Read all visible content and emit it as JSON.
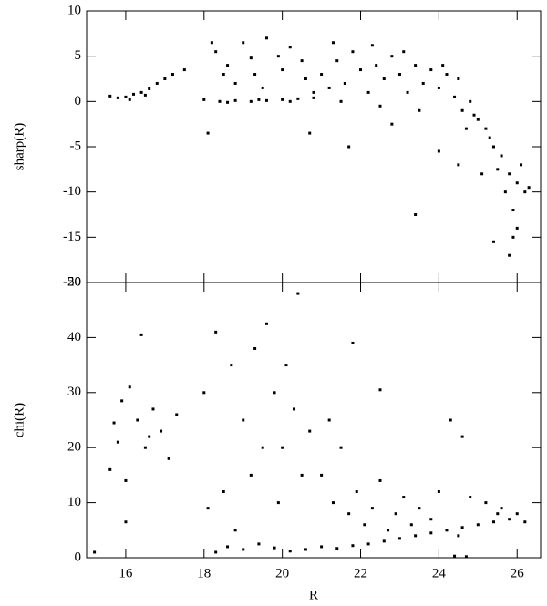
{
  "chart_data": [
    {
      "type": "scatter",
      "y_label": "sharp(R)",
      "color": "#000000",
      "xlim": [
        15,
        26.6
      ],
      "ylim": [
        -20,
        10
      ],
      "yticks": [
        -20,
        -15,
        -10,
        -5,
        0,
        5,
        10
      ],
      "x": [
        15.6,
        15.8,
        16.0,
        16.2,
        16.4,
        16.6,
        16.8,
        17.0,
        17.2,
        17.5,
        16.5,
        16.1,
        18.0,
        18.4,
        18.8,
        19.2,
        19.6,
        20.0,
        20.4,
        20.8,
        18.6,
        19.4,
        20.2,
        18.3,
        18.6,
        19.0,
        19.3,
        19.6,
        19.9,
        20.2,
        20.5,
        18.8,
        19.5,
        18.2,
        20.0,
        19.2,
        18.5,
        20.6,
        21.0,
        21.2,
        21.4,
        21.6,
        21.8,
        22.0,
        22.2,
        22.4,
        22.6,
        22.8,
        23.0,
        23.2,
        23.4,
        23.6,
        23.8,
        24.0,
        24.2,
        24.4,
        21.5,
        22.5,
        23.5,
        20.8,
        21.3,
        22.3,
        23.1,
        24.1,
        24.5,
        24.6,
        24.8,
        25.0,
        25.2,
        25.4,
        25.6,
        25.8,
        26.0,
        26.2,
        25.5,
        25.9,
        25.3,
        24.9,
        26.1,
        25.7,
        25.1,
        25.4,
        25.8,
        26.3,
        26.0,
        24.7,
        23.4,
        20.7,
        18.1,
        21.7,
        22.8,
        24.0,
        24.5,
        25.9
      ],
      "values": [
        0.6,
        0.4,
        0.5,
        0.8,
        1.0,
        1.4,
        2.0,
        2.5,
        3.0,
        3.5,
        0.7,
        0.2,
        0.2,
        0,
        0.1,
        0,
        0.1,
        0.2,
        0.3,
        0.4,
        -0.1,
        0.2,
        0,
        5.5,
        4,
        6.5,
        3,
        7,
        5,
        6,
        4.5,
        2,
        1.5,
        6.5,
        3.5,
        4.8,
        3,
        2.5,
        3,
        1.5,
        4.5,
        2,
        5.5,
        3.5,
        1,
        4,
        2.5,
        5,
        3,
        1,
        4,
        2,
        3.5,
        1.5,
        3,
        0.5,
        0,
        -0.5,
        -1,
        1,
        6.5,
        6.2,
        5.5,
        4,
        2.5,
        -1,
        0,
        -2,
        -3,
        -5,
        -6,
        -8,
        -9,
        -10,
        -7.5,
        -12,
        -4,
        -1.5,
        -7,
        -10,
        -8,
        -15.5,
        -17,
        -9.5,
        -14,
        -3,
        -12.5,
        -3.5,
        -3.5,
        -5,
        -2.5,
        -5.5,
        -7,
        -15
      ]
    },
    {
      "type": "scatter",
      "x_label": "R",
      "y_label": "chi(R)",
      "color": "#000000",
      "xlim": [
        15,
        26.6
      ],
      "ylim": [
        0,
        50
      ],
      "xticks": [
        16,
        18,
        20,
        22,
        24,
        26
      ],
      "yticks": [
        0,
        10,
        20,
        30,
        40,
        50
      ],
      "x": [
        15.6,
        15.8,
        16.0,
        16.3,
        16.5,
        16.7,
        16.9,
        17.1,
        16.4,
        15.9,
        16.1,
        15.2,
        16.0,
        16.6,
        17.3,
        15.7,
        18.3,
        18.6,
        19.0,
        19.4,
        19.8,
        20.2,
        20.6,
        21.0,
        21.4,
        21.8,
        22.2,
        22.6,
        23.0,
        23.4,
        23.8,
        24.2,
        24.6,
        25.0,
        25.4,
        25.8,
        26.2,
        26.0,
        25.6,
        24.4,
        24.7,
        18.0,
        18.3,
        18.7,
        19.0,
        19.3,
        19.6,
        19.8,
        20.0,
        20.3,
        20.5,
        20.7,
        18.5,
        19.2,
        18.1,
        19.5,
        20.1,
        19.9,
        18.8,
        20.4,
        21.0,
        21.3,
        21.5,
        21.7,
        21.9,
        22.1,
        22.3,
        22.5,
        22.7,
        22.9,
        23.1,
        23.3,
        21.8,
        22.5,
        21.2,
        23.5,
        23.8,
        24.0,
        24.3,
        24.6,
        24.8,
        25.2,
        25.5,
        24.5
      ],
      "values": [
        16,
        21,
        14,
        25,
        20,
        27,
        23,
        18,
        40.5,
        28.5,
        31,
        1,
        6.5,
        22,
        26,
        24.5,
        1,
        2,
        1.5,
        2.5,
        1.8,
        1.2,
        1.5,
        2,
        1.7,
        2.2,
        2.5,
        3,
        3.5,
        4,
        4.5,
        5,
        5.5,
        6,
        6.5,
        7,
        6.5,
        8,
        9,
        0.3,
        0.2,
        30,
        41,
        35,
        25,
        38,
        42.5,
        30,
        20,
        27,
        15,
        23,
        12,
        15,
        9,
        20,
        35,
        10,
        5,
        48,
        15,
        10,
        20,
        8,
        12,
        6,
        9,
        14,
        5,
        8,
        11,
        6,
        39,
        30.5,
        25,
        9,
        7,
        12,
        25,
        22,
        11,
        10,
        8,
        4
      ]
    }
  ]
}
